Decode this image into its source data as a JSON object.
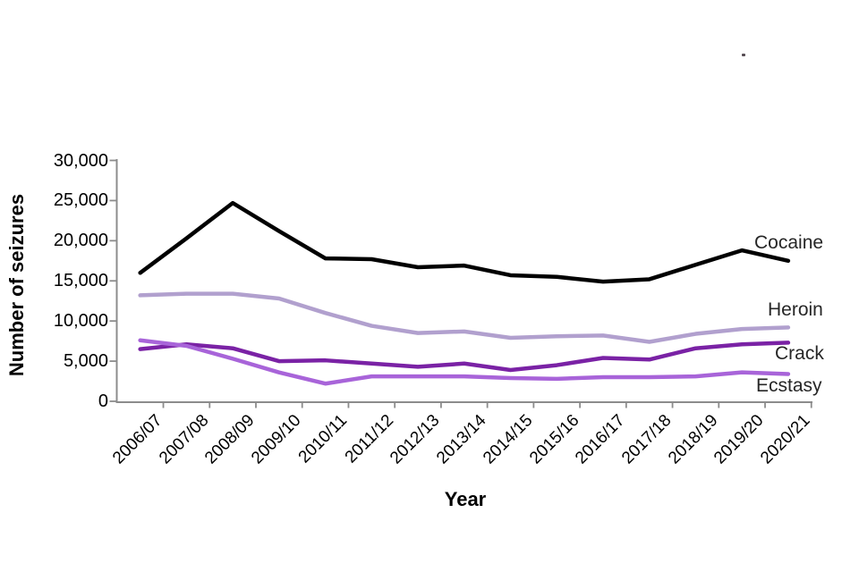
{
  "chart_data": {
    "type": "line",
    "title": "",
    "xlabel": "Year",
    "ylabel": "Number of seizures",
    "categories": [
      "2006/07",
      "2007/08",
      "2008/09",
      "2009/10",
      "2010/11",
      "2011/12",
      "2012/13",
      "2013/14",
      "2014/15",
      "2015/16",
      "2016/17",
      "2017/18",
      "2018/19",
      "2019/20",
      "2020/21"
    ],
    "series": [
      {
        "name": "Cocaine",
        "color": "#000000",
        "values": [
          16000,
          20300,
          24700,
          21200,
          17800,
          17700,
          16700,
          16900,
          15700,
          15500,
          14900,
          15200,
          17000,
          18800,
          17500
        ]
      },
      {
        "name": "Heroin",
        "color": "#b1a0ce",
        "values": [
          13200,
          13400,
          13400,
          12800,
          11000,
          9400,
          8500,
          8700,
          7900,
          8100,
          8200,
          7400,
          8400,
          9000,
          9200
        ]
      },
      {
        "name": "Crack",
        "color": "#7a22a5",
        "values": [
          6500,
          7100,
          6600,
          5000,
          5100,
          4700,
          4300,
          4700,
          3900,
          4500,
          5400,
          5200,
          6600,
          7100,
          7300
        ]
      },
      {
        "name": "Ecstasy",
        "color": "#a864d9",
        "values": [
          7600,
          6900,
          5300,
          3600,
          2200,
          3100,
          3100,
          3100,
          2900,
          2800,
          3000,
          3000,
          3100,
          3600,
          3400
        ]
      }
    ],
    "ylim": [
      0,
      30000
    ],
    "ytick_step": 5000,
    "ytick_labels": [
      "0",
      "5,000",
      "10,000",
      "15,000",
      "20,000",
      "25,000",
      "30,000"
    ],
    "grid": false,
    "legend_position": "labels at line ends (right side)"
  },
  "axis_color": "#8c8c8c",
  "text_color": "#000000"
}
